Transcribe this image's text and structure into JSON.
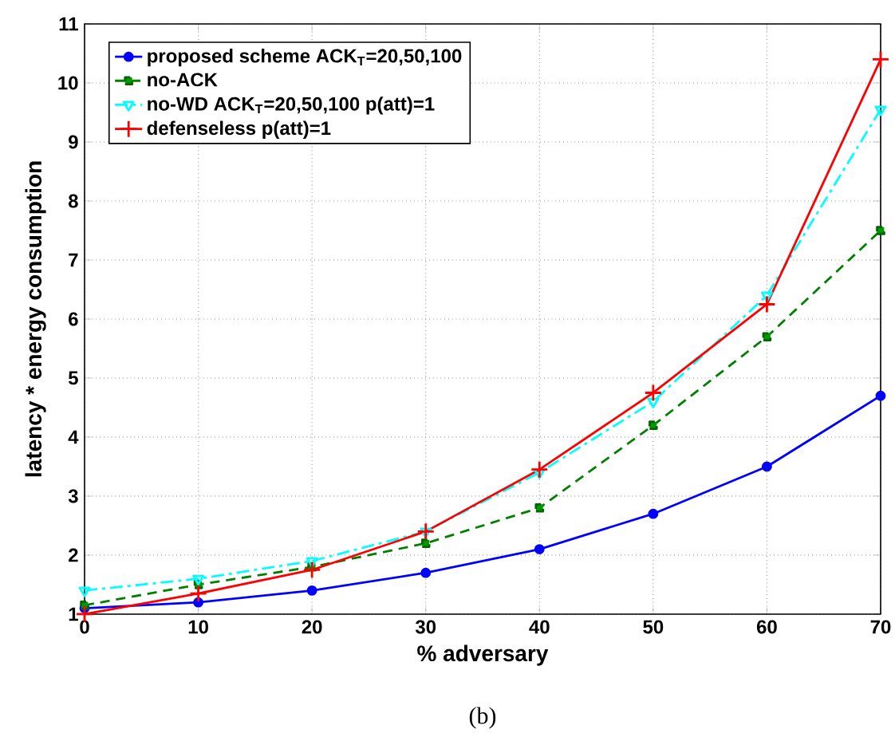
{
  "chart_data": {
    "type": "line",
    "xlabel": "% adversary",
    "ylabel": "latency * energy consumption",
    "x": [
      0,
      10,
      20,
      30,
      40,
      50,
      60,
      70
    ],
    "series": [
      {
        "name": "proposed scheme ACK$_{T}$=20,50,100",
        "color": "#0000ff",
        "marker": "circle",
        "line_style": "solid",
        "values": [
          1.1,
          1.2,
          1.4,
          1.7,
          2.1,
          2.7,
          3.5,
          4.7
        ]
      },
      {
        "name": "no-ACK",
        "color": "#008000",
        "marker": "square",
        "line_style": "dashed",
        "values": [
          1.15,
          1.5,
          1.8,
          2.2,
          2.8,
          4.2,
          5.7,
          7.5
        ]
      },
      {
        "name": "no-WD ACK$_{T}$=20,50,100 p(att)=1",
        "color": "#00ffff",
        "marker": "triangle",
        "line_style": "dashdot",
        "values": [
          1.4,
          1.6,
          1.9,
          2.4,
          3.4,
          4.6,
          6.4,
          9.55
        ]
      },
      {
        "name": "defenseless p(att)=1",
        "color": "#ff0000",
        "marker": "cross",
        "line_style": "solid",
        "values": [
          1.0,
          1.35,
          1.75,
          2.4,
          3.45,
          4.75,
          6.25,
          10.4
        ]
      }
    ],
    "xlim": [
      0,
      70
    ],
    "ylim": [
      1,
      11
    ],
    "xticks": [
      0,
      10,
      20,
      30,
      40,
      50,
      60,
      70
    ],
    "yticks": [
      1,
      2,
      3,
      4,
      5,
      6,
      7,
      8,
      9,
      10,
      11
    ],
    "grid": true,
    "legend": "top left",
    "annotations": [
      "(b)"
    ]
  }
}
